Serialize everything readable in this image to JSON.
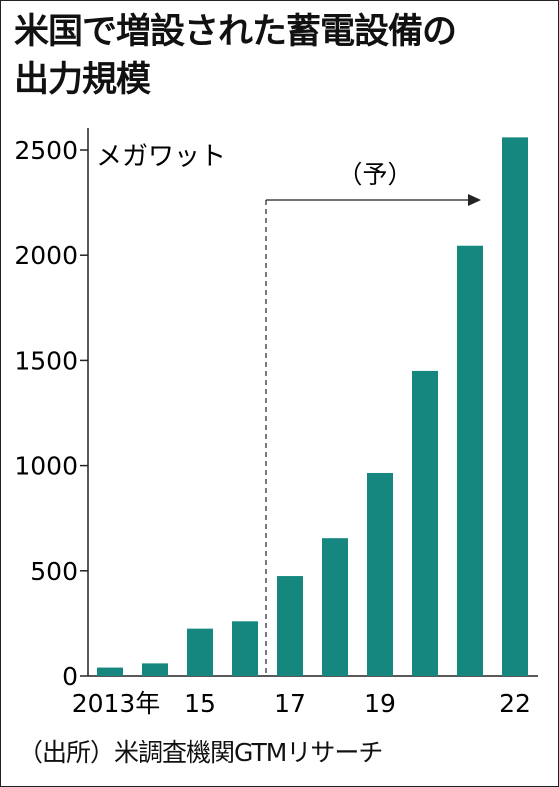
{
  "title_lines": [
    "米国で増設された蓄電設備の",
    "出力規模"
  ],
  "source": "（出所）米調査機関GTMリサーチ",
  "chart_data": {
    "type": "bar",
    "unit": "メガワット",
    "forecast_label": "（予）",
    "forecast_start_index": 4,
    "x_tick_labels": [
      "2013年",
      "",
      "15",
      "",
      "17",
      "",
      "19",
      "",
      "",
      "22"
    ],
    "categories": [
      "2013",
      "2014",
      "2015",
      "2016",
      "2017",
      "2018",
      "2019",
      "2020",
      "2021",
      "2022"
    ],
    "values": [
      40,
      60,
      225,
      260,
      475,
      655,
      965,
      1450,
      2045,
      2560
    ],
    "yticks": [
      0,
      500,
      1000,
      1500,
      2000,
      2500
    ],
    "ylim": [
      0,
      2600
    ],
    "bar_color": "#15877f",
    "grid": false
  }
}
